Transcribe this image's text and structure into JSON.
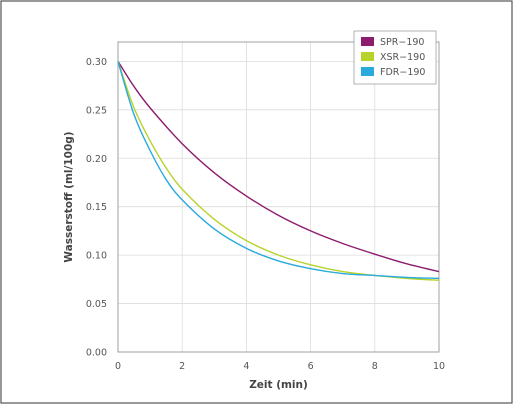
{
  "chart_data": {
    "type": "line",
    "title": "",
    "xlabel": "Zeit (min)",
    "ylabel": "Wasserstoff (ml/100g)",
    "xlim": [
      0,
      10
    ],
    "ylim": [
      0,
      0.32
    ],
    "xticks": [
      0,
      2,
      4,
      6,
      8,
      10
    ],
    "xtick_labels": [
      "0",
      "2",
      "4",
      "6",
      "8",
      "10"
    ],
    "yticks": [
      0,
      0.05,
      0.1,
      0.15,
      0.2,
      0.25,
      0.3
    ],
    "ytick_labels": [
      "0.00",
      "0.05",
      "0.10",
      "0.15",
      "0.20",
      "0.25",
      "0.30"
    ],
    "grid": true,
    "legend_position": "top-right",
    "series": [
      {
        "name": "SPR−190",
        "color": "#8e1c6e",
        "x": [
          0,
          0.5,
          1,
          2,
          3,
          4,
          5,
          6,
          7,
          8,
          9,
          10
        ],
        "y": [
          0.3,
          0.274,
          0.252,
          0.215,
          0.185,
          0.161,
          0.141,
          0.125,
          0.112,
          0.101,
          0.091,
          0.083
        ]
      },
      {
        "name": "XSR−190",
        "color": "#b9d22b",
        "x": [
          0,
          0.5,
          1,
          1.5,
          2,
          3,
          4,
          5,
          6,
          7,
          8,
          9,
          10
        ],
        "y": [
          0.3,
          0.252,
          0.218,
          0.19,
          0.168,
          0.137,
          0.115,
          0.1,
          0.09,
          0.083,
          0.079,
          0.076,
          0.074
        ]
      },
      {
        "name": "FDR−190",
        "color": "#2aa9dd",
        "x": [
          0,
          0.5,
          1,
          1.5,
          2,
          3,
          4,
          5,
          6,
          7,
          8,
          9,
          10
        ],
        "y": [
          0.3,
          0.245,
          0.208,
          0.178,
          0.157,
          0.127,
          0.107,
          0.094,
          0.086,
          0.081,
          0.079,
          0.077,
          0.076
        ]
      }
    ]
  }
}
